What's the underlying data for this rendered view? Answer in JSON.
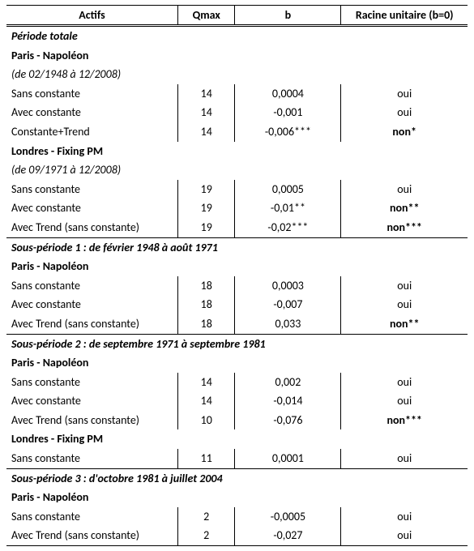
{
  "headers": {
    "actifs": "Actifs",
    "qmax": "Qmax",
    "b": "b",
    "racine": "Racine unitaire (b=0)"
  },
  "sections": [
    {
      "title": "Période totale",
      "groups": [
        {
          "name": "Paris - Napoléon",
          "note": "(de 02/1948 à 12/2008)",
          "rows": [
            {
              "label": "Sans constante",
              "qmax": "14",
              "b": "0,0004",
              "racine": "oui",
              "racine_bold": false
            },
            {
              "label": "Avec constante",
              "qmax": "14",
              "b": "-0,001",
              "racine": "oui",
              "racine_bold": false
            },
            {
              "label": "Constante+Trend",
              "qmax": "14",
              "b": "-0,006***",
              "racine": "non*",
              "racine_bold": true
            }
          ]
        },
        {
          "name": "Londres - Fixing PM",
          "note": "(de 09/1971 à 12/2008)",
          "rows": [
            {
              "label": "Sans constante",
              "qmax": "19",
              "b": "0,0005",
              "racine": "oui",
              "racine_bold": false
            },
            {
              "label": "Avec constante",
              "qmax": "19",
              "b": "-0,01**",
              "racine": "non**",
              "racine_bold": true
            },
            {
              "label": "Avec Trend (sans constante)",
              "qmax": "19",
              "b": "-0,02***",
              "racine": "non***",
              "racine_bold": true
            }
          ]
        }
      ]
    },
    {
      "title": "Sous-période 1 : de février 1948 à août 1971",
      "groups": [
        {
          "name": "Paris - Napoléon",
          "rows": [
            {
              "label": "Sans constante",
              "qmax": "18",
              "b": "0,0003",
              "racine": "oui",
              "racine_bold": false
            },
            {
              "label": "Avec constante",
              "qmax": "18",
              "b": "-0,007",
              "racine": "oui",
              "racine_bold": false
            },
            {
              "label": "Avec Trend (sans constante)",
              "qmax": "18",
              "b": "0,033",
              "racine": "non**",
              "racine_bold": true
            }
          ]
        }
      ]
    },
    {
      "title": "Sous-période 2 : de septembre 1971 à septembre 1981",
      "groups": [
        {
          "name": "Paris - Napoléon",
          "rows": [
            {
              "label": "Sans constante",
              "qmax": "14",
              "b": "0,002",
              "racine": "oui",
              "racine_bold": false
            },
            {
              "label": "Avec constante",
              "qmax": "14",
              "b": "-0,014",
              "racine": "oui",
              "racine_bold": false
            },
            {
              "label": "Avec Trend (sans constante)",
              "qmax": "10",
              "b": "-0,076",
              "racine": "non***",
              "racine_bold": true
            }
          ]
        },
        {
          "name": "Londres - Fixing PM",
          "rows": [
            {
              "label": "Sans constante",
              "qmax": "11",
              "b": "0,0001",
              "racine": "oui",
              "racine_bold": false
            }
          ]
        }
      ]
    },
    {
      "title": "Sous-période 3 : d'octobre 1981 à juillet 2004",
      "groups": [
        {
          "name": "Paris - Napoléon",
          "rows": [
            {
              "label": "Sans constante",
              "qmax": "2",
              "b": "-0,0005",
              "racine": "oui",
              "racine_bold": false
            },
            {
              "label": "Avec Trend (sans constante)",
              "qmax": "2",
              "b": "-0,027",
              "racine": "oui",
              "racine_bold": false
            }
          ]
        }
      ]
    }
  ]
}
